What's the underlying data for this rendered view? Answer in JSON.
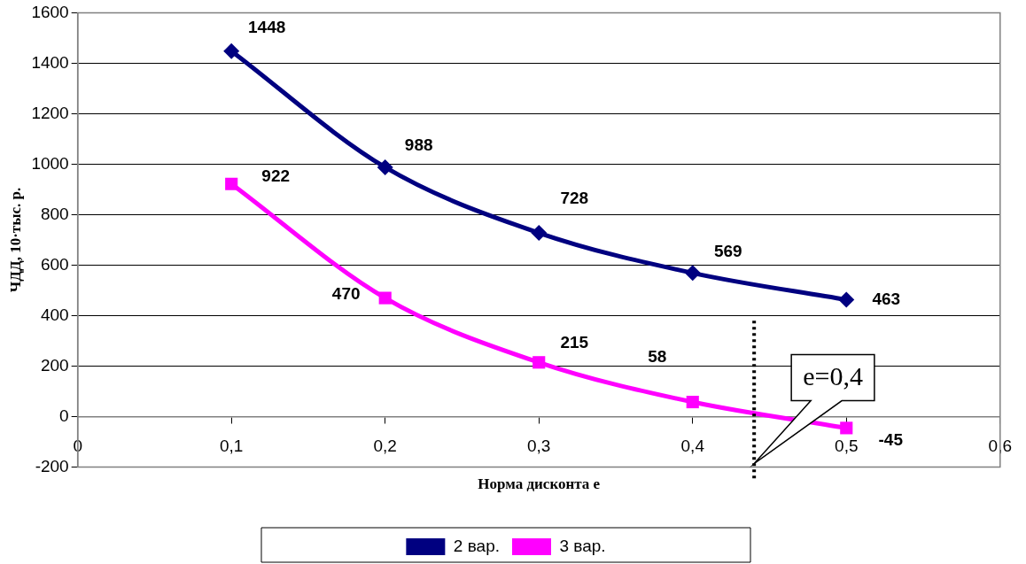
{
  "chart_data": {
    "type": "line",
    "xlabel": "Норма дисконта e",
    "ylabel": "ЧДД, 10·тыс. р.",
    "x": [
      0.1,
      0.2,
      0.3,
      0.4,
      0.5
    ],
    "series": [
      {
        "name": "2 вар.",
        "color": "#000080",
        "marker": "diamond",
        "values": [
          1448,
          988,
          728,
          569,
          463
        ]
      },
      {
        "name": "3 вар.",
        "color": "#ff00ff",
        "marker": "square",
        "values": [
          922,
          470,
          215,
          58,
          -45
        ]
      }
    ],
    "xlim": [
      0,
      0.6
    ],
    "xticks": [
      {
        "value": 0,
        "label": "0"
      },
      {
        "value": 0.1,
        "label": "0,1"
      },
      {
        "value": 0.2,
        "label": "0,2"
      },
      {
        "value": 0.3,
        "label": "0,3"
      },
      {
        "value": 0.4,
        "label": "0,4"
      },
      {
        "value": 0.5,
        "label": "0,5"
      },
      {
        "value": 0.6,
        "label": "0,6"
      }
    ],
    "ylim": [
      -200,
      1600
    ],
    "yticks": [
      -200,
      0,
      200,
      400,
      600,
      800,
      1000,
      1200,
      1400,
      1600
    ],
    "ref_lines": [
      {
        "axis": "x",
        "value": 0.44,
        "line_style": "dotted",
        "color": "#000000",
        "label": "e=0,4"
      }
    ],
    "data_labels": true,
    "grid": "y",
    "legend": "bottom",
    "line_style": "solid"
  }
}
